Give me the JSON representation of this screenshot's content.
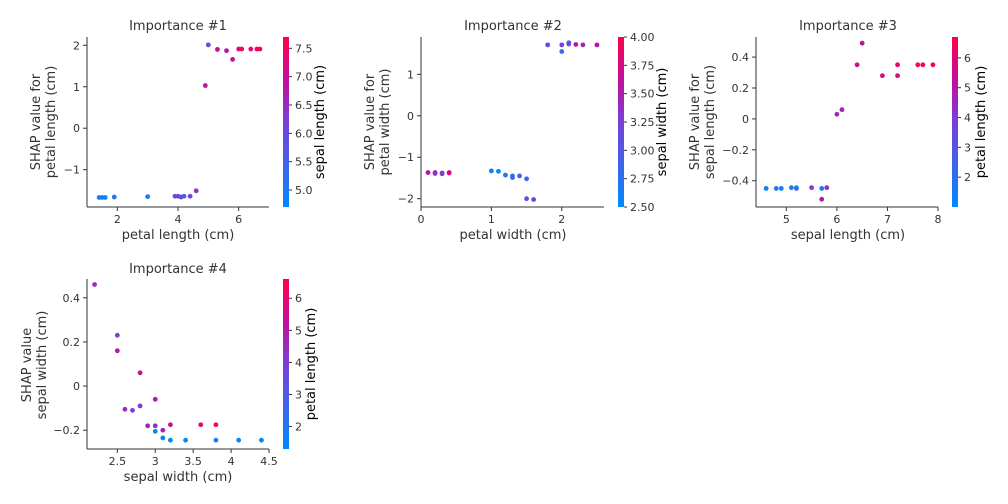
{
  "chart_data": [
    {
      "type": "scatter",
      "title": "Importance #1",
      "xlabel": "petal length (cm)",
      "ylabel": [
        "SHAP value for",
        "petal length (cm)"
      ],
      "xlim": [
        1.0,
        7.0
      ],
      "ylim": [
        -1.9,
        2.2
      ],
      "xticks": [
        2,
        4,
        6
      ],
      "yticks": [
        -1,
        0,
        1,
        2
      ],
      "colorbar": {
        "label": "sepal length (cm)",
        "range": [
          4.7,
          7.7
        ],
        "ticks": [
          5.0,
          5.5,
          6.0,
          6.5,
          7.0,
          7.5
        ],
        "tick_labels": [
          "5.0",
          "5.5",
          "6.0",
          "6.5",
          "7.0",
          "7.5"
        ]
      },
      "points": [
        [
          1.4,
          -1.67,
          4.9
        ],
        [
          1.5,
          -1.67,
          5.0
        ],
        [
          1.6,
          -1.67,
          4.8
        ],
        [
          1.9,
          -1.66,
          5.1
        ],
        [
          3.0,
          -1.65,
          5.0
        ],
        [
          3.9,
          -1.64,
          5.8
        ],
        [
          4.0,
          -1.64,
          6.0
        ],
        [
          4.1,
          -1.66,
          5.8
        ],
        [
          4.2,
          -1.64,
          5.7
        ],
        [
          4.4,
          -1.64,
          6.1
        ],
        [
          4.6,
          -1.51,
          6.4
        ],
        [
          4.9,
          1.03,
          6.9
        ],
        [
          5.0,
          2.01,
          6.0
        ],
        [
          5.3,
          1.9,
          7.0
        ],
        [
          5.6,
          1.87,
          6.8
        ],
        [
          5.8,
          1.66,
          6.9
        ],
        [
          6.0,
          1.91,
          7.2
        ],
        [
          6.1,
          1.91,
          7.7
        ],
        [
          6.4,
          1.91,
          7.3
        ],
        [
          6.6,
          1.91,
          7.6
        ],
        [
          6.7,
          1.91,
          7.7
        ]
      ]
    },
    {
      "type": "scatter",
      "title": "Importance #2",
      "xlabel": "petal width (cm)",
      "ylabel": [
        "SHAP value for",
        "petal width (cm)"
      ],
      "xlim": [
        0.0,
        2.6
      ],
      "ylim": [
        -2.2,
        1.9
      ],
      "xticks": [
        0,
        1,
        2
      ],
      "yticks": [
        -2,
        -1,
        0,
        1
      ],
      "colorbar": {
        "label": "sepal width (cm)",
        "range": [
          2.5,
          4.0
        ],
        "ticks": [
          2.5,
          2.75,
          3.0,
          3.25,
          3.5,
          3.75,
          4.0
        ],
        "tick_labels": [
          "2.50",
          "2.75",
          "3.00",
          "3.25",
          "3.50",
          "3.75",
          "4.00"
        ]
      },
      "points": [
        [
          0.1,
          -1.37,
          3.6
        ],
        [
          0.2,
          -1.37,
          3.5
        ],
        [
          0.2,
          -1.39,
          3.4
        ],
        [
          0.3,
          -1.38,
          3.3
        ],
        [
          0.3,
          -1.4,
          3.2
        ],
        [
          0.4,
          -1.38,
          3.9
        ],
        [
          0.4,
          -1.37,
          3.7
        ],
        [
          1.0,
          -1.33,
          2.6
        ],
        [
          1.1,
          -1.34,
          2.5
        ],
        [
          1.2,
          -1.43,
          2.7
        ],
        [
          1.3,
          -1.45,
          2.8
        ],
        [
          1.3,
          -1.49,
          2.9
        ],
        [
          1.4,
          -1.45,
          2.9
        ],
        [
          1.5,
          -1.52,
          2.8
        ],
        [
          1.5,
          -2.0,
          3.1
        ],
        [
          1.6,
          -2.02,
          3.2
        ],
        [
          1.8,
          1.71,
          3.1
        ],
        [
          2.0,
          1.55,
          2.8
        ],
        [
          2.0,
          1.71,
          3.2
        ],
        [
          2.1,
          1.76,
          3.0
        ],
        [
          2.1,
          1.73,
          3.1
        ],
        [
          2.2,
          1.72,
          3.6
        ],
        [
          2.3,
          1.71,
          3.4
        ],
        [
          2.5,
          1.71,
          3.6
        ]
      ]
    },
    {
      "type": "scatter",
      "title": "Importance #3",
      "xlabel": "sepal length (cm)",
      "ylabel": [
        "SHAP value for",
        "sepal length (cm)"
      ],
      "xlim": [
        4.4,
        8.0
      ],
      "ylim": [
        -0.57,
        0.53
      ],
      "xticks": [
        5,
        6,
        7,
        8
      ],
      "yticks": [
        -0.4,
        -0.2,
        0.0,
        0.2,
        0.4
      ],
      "colorbar": {
        "label": "petal length (cm)",
        "range": [
          1.0,
          6.7
        ],
        "ticks": [
          2,
          3,
          4,
          5,
          6
        ],
        "tick_labels": [
          "2",
          "3",
          "4",
          "5",
          "6"
        ]
      },
      "points": [
        [
          4.6,
          -0.45,
          1.4
        ],
        [
          4.8,
          -0.45,
          1.6
        ],
        [
          4.9,
          -0.45,
          1.5
        ],
        [
          5.1,
          -0.445,
          1.5
        ],
        [
          5.2,
          -0.45,
          3.9
        ],
        [
          5.2,
          -0.445,
          1.5
        ],
        [
          5.5,
          -0.445,
          4.0
        ],
        [
          5.7,
          -0.45,
          1.7
        ],
        [
          5.7,
          -0.52,
          5.0
        ],
        [
          5.8,
          -0.445,
          4.1
        ],
        [
          6.0,
          0.03,
          4.5
        ],
        [
          6.1,
          0.06,
          4.7
        ],
        [
          6.4,
          0.35,
          5.6
        ],
        [
          6.5,
          0.49,
          5.2
        ],
        [
          6.9,
          0.28,
          5.7
        ],
        [
          7.2,
          0.35,
          6.1
        ],
        [
          7.2,
          0.28,
          5.8
        ],
        [
          7.6,
          0.35,
          6.6
        ],
        [
          7.7,
          0.35,
          6.7
        ],
        [
          7.9,
          0.35,
          6.4
        ]
      ]
    },
    {
      "type": "scatter",
      "title": "Importance #4",
      "xlabel": "sepal width (cm)",
      "ylabel": [
        "SHAP value",
        "sepal width (cm)"
      ],
      "xlim": [
        2.1,
        4.5
      ],
      "ylim": [
        -0.285,
        0.485
      ],
      "xticks": [
        2.5,
        3.0,
        3.5,
        4.0,
        4.5
      ],
      "yticks": [
        -0.2,
        0.0,
        0.2,
        0.4
      ],
      "colorbar": {
        "label": "petal length (cm)",
        "range": [
          1.3,
          6.6
        ],
        "ticks": [
          2,
          3,
          4,
          5,
          6
        ],
        "tick_labels": [
          "2",
          "3",
          "4",
          "5",
          "6"
        ]
      },
      "points": [
        [
          2.2,
          0.46,
          4.5
        ],
        [
          2.5,
          0.23,
          3.9
        ],
        [
          2.5,
          0.16,
          5.0
        ],
        [
          2.6,
          -0.105,
          4.4
        ],
        [
          2.7,
          -0.11,
          3.9
        ],
        [
          2.8,
          0.06,
          5.6
        ],
        [
          2.8,
          -0.09,
          4.1
        ],
        [
          2.9,
          -0.18,
          4.6
        ],
        [
          3.0,
          -0.06,
          5.1
        ],
        [
          3.0,
          -0.18,
          4.2
        ],
        [
          3.0,
          -0.205,
          1.4
        ],
        [
          3.1,
          -0.2,
          4.7
        ],
        [
          3.1,
          -0.235,
          1.5
        ],
        [
          3.2,
          -0.175,
          5.3
        ],
        [
          3.2,
          -0.245,
          1.3
        ],
        [
          3.4,
          -0.245,
          1.6
        ],
        [
          3.6,
          -0.175,
          6.1
        ],
        [
          3.8,
          -0.175,
          6.4
        ],
        [
          3.8,
          -0.245,
          1.7
        ],
        [
          4.1,
          -0.245,
          1.5
        ],
        [
          4.4,
          -0.245,
          1.5
        ]
      ]
    }
  ]
}
